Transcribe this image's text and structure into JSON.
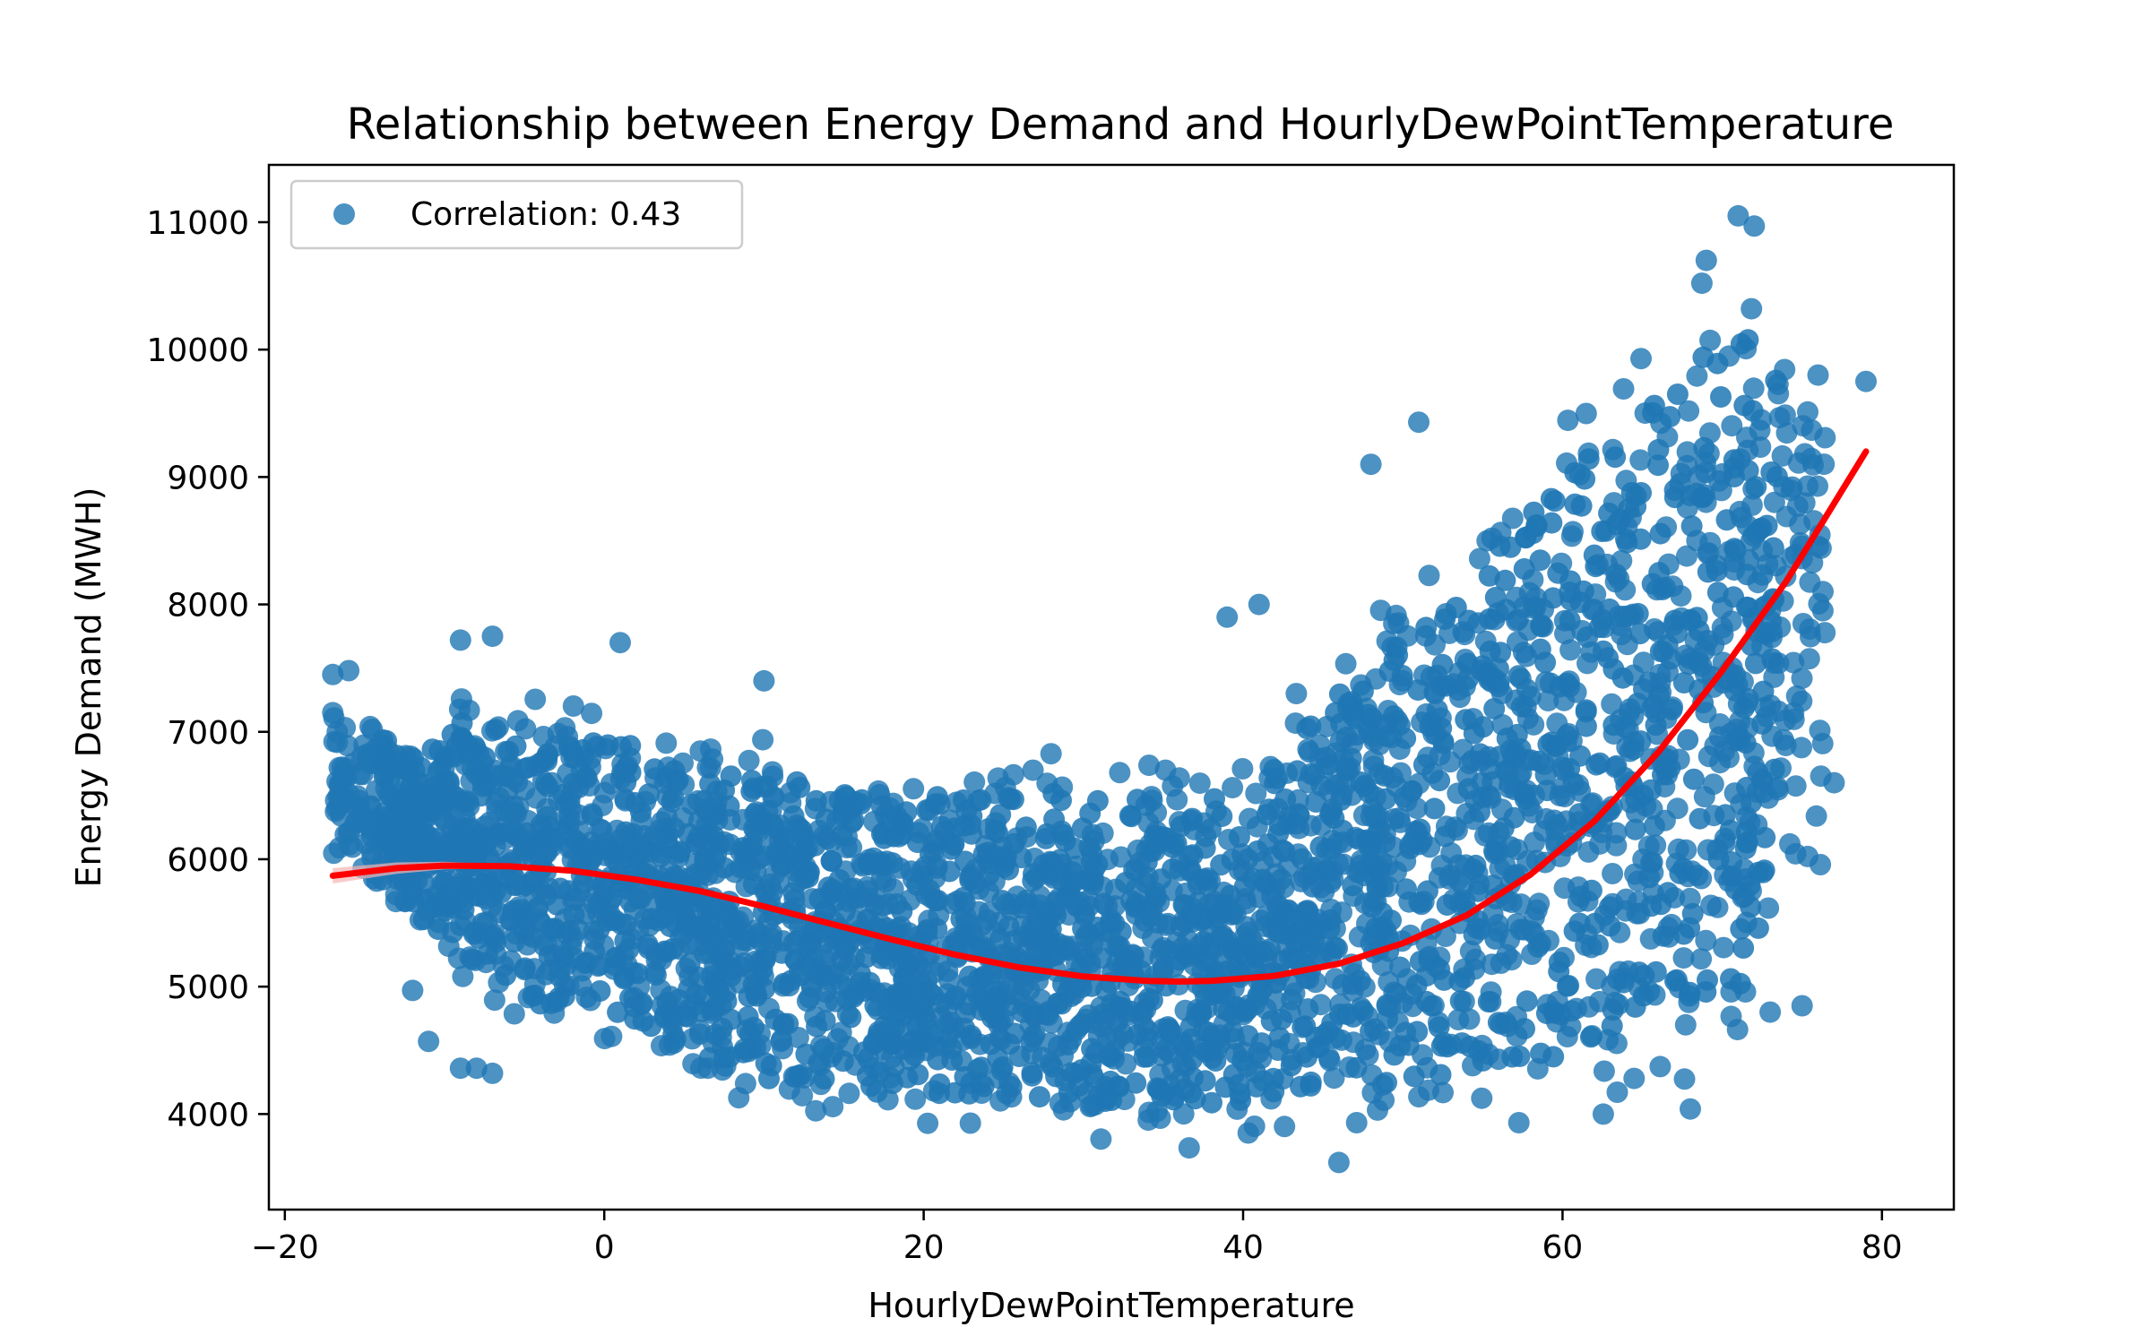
{
  "chart_data": {
    "type": "scatter",
    "title": "Relationship between Energy Demand and HourlyDewPointTemperature",
    "xlabel": "HourlyDewPointTemperature",
    "ylabel": "Energy Demand (MWH)",
    "xlim": [
      -21,
      84.5
    ],
    "ylim": [
      3250,
      11450
    ],
    "x_ticks": [
      -20,
      0,
      20,
      40,
      60,
      80
    ],
    "x_tick_labels": [
      "−20",
      "0",
      "20",
      "40",
      "60",
      "80"
    ],
    "y_ticks": [
      4000,
      5000,
      6000,
      7000,
      8000,
      9000,
      10000,
      11000
    ],
    "y_tick_labels": [
      "4000",
      "5000",
      "6000",
      "7000",
      "8000",
      "9000",
      "10000",
      "11000"
    ],
    "grid": false,
    "legend": {
      "position": "top-left",
      "entries": [
        "Correlation: 0.43"
      ]
    },
    "colors": {
      "points": "#1f77b4",
      "fit_line": "#ff0000",
      "ci_band": "#f4b3b3"
    },
    "scatter_envelope": [
      {
        "x": -17,
        "ymin": 6000,
        "ymax": 7400
      },
      {
        "x": -12,
        "ymin": 5400,
        "ymax": 7000
      },
      {
        "x": -8,
        "ymin": 4800,
        "ymax": 7500
      },
      {
        "x": -4,
        "ymin": 4500,
        "ymax": 7300
      },
      {
        "x": 0,
        "ymin": 4500,
        "ymax": 7400
      },
      {
        "x": 3,
        "ymin": 4250,
        "ymax": 7100
      },
      {
        "x": 10,
        "ymin": 3900,
        "ymax": 7000
      },
      {
        "x": 20,
        "ymin": 3750,
        "ymax": 6900
      },
      {
        "x": 30,
        "ymin": 3700,
        "ymax": 6900
      },
      {
        "x": 40,
        "ymin": 3700,
        "ymax": 6850
      },
      {
        "x": 45,
        "ymin": 3700,
        "ymax": 7700
      },
      {
        "x": 50,
        "ymin": 3700,
        "ymax": 8300
      },
      {
        "x": 55,
        "ymin": 3700,
        "ymax": 9000
      },
      {
        "x": 60,
        "ymin": 3750,
        "ymax": 9700
      },
      {
        "x": 64,
        "ymin": 3850,
        "ymax": 10200
      },
      {
        "x": 68,
        "ymin": 4000,
        "ymax": 10700
      },
      {
        "x": 71,
        "ymin": 4100,
        "ymax": 11000
      },
      {
        "x": 74,
        "ymin": 4800,
        "ymax": 10400
      },
      {
        "x": 76.5,
        "ymin": 5900,
        "ymax": 9800
      }
    ],
    "outliers": [
      {
        "x": -17,
        "y": 7450
      },
      {
        "x": -16,
        "y": 7480
      },
      {
        "x": -17,
        "y": 7150
      },
      {
        "x": -12,
        "y": 4970
      },
      {
        "x": -11,
        "y": 4570
      },
      {
        "x": -9,
        "y": 4360
      },
      {
        "x": -8,
        "y": 4360
      },
      {
        "x": -7,
        "y": 4320
      },
      {
        "x": -9,
        "y": 7720
      },
      {
        "x": -7,
        "y": 7750
      },
      {
        "x": 1,
        "y": 7700
      },
      {
        "x": 10,
        "y": 7400
      },
      {
        "x": 39,
        "y": 7900
      },
      {
        "x": 41,
        "y": 8000
      },
      {
        "x": 48,
        "y": 9100
      },
      {
        "x": 51,
        "y": 9430
      },
      {
        "x": 79,
        "y": 9750
      },
      {
        "x": 76,
        "y": 9800
      },
      {
        "x": 71,
        "y": 11050
      },
      {
        "x": 72,
        "y": 10970
      },
      {
        "x": 69,
        "y": 10700
      },
      {
        "x": 73,
        "y": 4800
      },
      {
        "x": 75,
        "y": 4850
      },
      {
        "x": 77,
        "y": 6600
      },
      {
        "x": 68,
        "y": 4040
      },
      {
        "x": 46,
        "y": 3620
      }
    ],
    "fit_line": {
      "x": [
        -17,
        -13,
        -10,
        -6,
        -2,
        2,
        6,
        10,
        14,
        18,
        22,
        26,
        30,
        34,
        36,
        38,
        42,
        46,
        50,
        54,
        58,
        62,
        66,
        70,
        74,
        79
      ],
      "y": [
        5870,
        5930,
        5950,
        5945,
        5910,
        5840,
        5750,
        5630,
        5500,
        5370,
        5250,
        5150,
        5080,
        5045,
        5040,
        5045,
        5085,
        5180,
        5340,
        5560,
        5880,
        6300,
        6840,
        7480,
        8180,
        9200
      ]
    }
  }
}
